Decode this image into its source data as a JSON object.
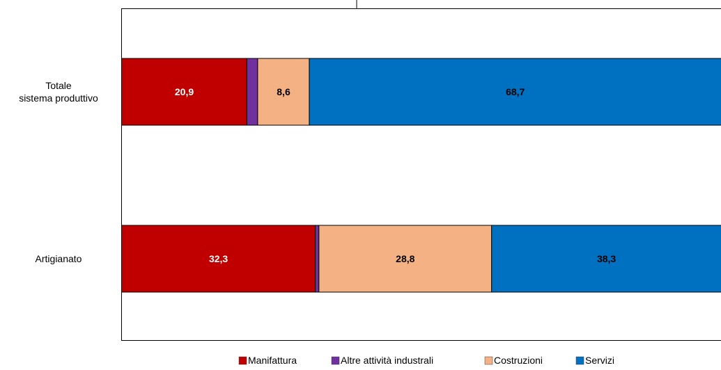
{
  "chart_data": {
    "type": "bar",
    "orientation": "horizontal",
    "stacked": true,
    "title": "",
    "categories": [
      "Totale\nsistema produttivo",
      "Artigianato"
    ],
    "series": [
      {
        "name": "Manifattura",
        "color": "#c00000",
        "values": [
          20.9,
          32.3
        ],
        "labels": [
          "20,9",
          "32,3"
        ],
        "label_color": "#ffffff"
      },
      {
        "name": "Altre attività industrali",
        "color": "#7030a0",
        "values": [
          1.8,
          0.6
        ],
        "labels": [
          "",
          ""
        ],
        "label_color": "#ffffff"
      },
      {
        "name": "Costruzioni",
        "color": "#f4b183",
        "values": [
          8.6,
          28.8
        ],
        "labels": [
          "8,6",
          "28,8"
        ],
        "label_color": "#000000"
      },
      {
        "name": "Servizi",
        "color": "#0070c0",
        "values": [
          68.7,
          38.3
        ],
        "labels": [
          "68,7",
          "38,3"
        ],
        "label_color": "#000000"
      }
    ],
    "xlim": [
      0,
      100
    ],
    "grid": false,
    "legend": "bottom"
  }
}
